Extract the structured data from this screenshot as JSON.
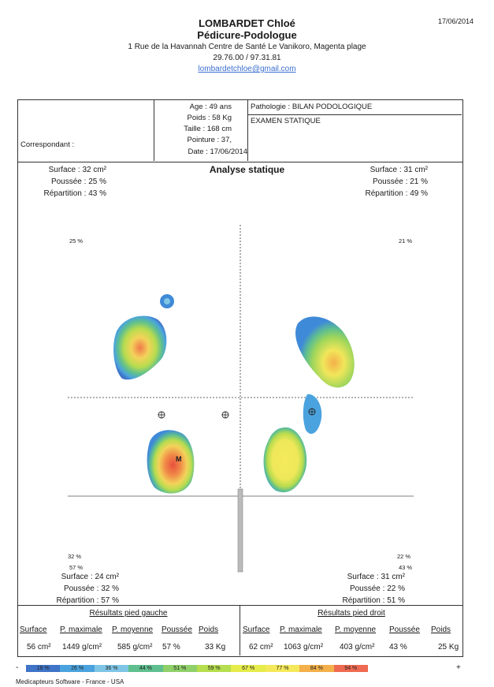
{
  "header": {
    "name": "LOMBARDET Chloé",
    "specialty": "Pédicure-Podologue",
    "address": "1 Rue de la Havannah Centre de Santé Le Vanikoro, Magenta plage",
    "phone": "29.76.00 / 97.31.81",
    "email": "lombardetchloe@gmail.com",
    "print_date": "17/06/2014"
  },
  "patient": {
    "correspondant_label": "Correspondant :",
    "age": "Age : 49 ans",
    "poids": "Poids : 58 Kg",
    "taille": "Taille : 168 cm",
    "pointure": "Pointure : 37,",
    "date": "Date : 17/06/2014",
    "pathologie": "Pathologie : BILAN PODOLOGIQUE",
    "examen": "EXAMEN STATIQUE"
  },
  "analysis": {
    "title": "Analyse statique",
    "left_top": {
      "surface": "Surface :   32 cm²",
      "poussee": "Poussée : 25 %",
      "repartition": "Répartition : 43 %"
    },
    "right_top": {
      "surface": "Surface :   31 cm²",
      "poussee": "Poussée : 21 %",
      "repartition": "Répartition : 49 %"
    },
    "left_bottom": {
      "surface": "Surface :   24 cm²",
      "poussee": "Poussée : 32 %",
      "repartition": "Répartition : 57 %"
    },
    "right_bottom": {
      "surface": "Surface :   31 cm²",
      "poussee": "Poussée : 22 %",
      "repartition": "Répartition : 51 %"
    },
    "quad_labels": {
      "tl": "25 %",
      "tr": "21 %",
      "bl_a": "32 %",
      "bl_b": "57 %",
      "br_a": "22 %",
      "br_b": "43 %"
    },
    "heel_marker": "M"
  },
  "results": {
    "left_title": "Résultats pied gauche",
    "right_title": "Résultats pied droit",
    "headers": [
      "Surface",
      "P. maximale",
      "P. moyenne",
      "Poussée",
      "Poids"
    ],
    "left_values": [
      "56 cm²",
      "1449 g/cm²",
      "585 g/cm²",
      "57 %",
      "33 Kg"
    ],
    "right_values": [
      "62 cm²",
      "1063 g/cm²",
      "403 g/cm²",
      "43 %",
      "25 Kg"
    ]
  },
  "scale": {
    "minus": "-",
    "plus": "+",
    "segments": [
      {
        "label": "18 %",
        "color": "#3f74c8"
      },
      {
        "label": "26 %",
        "color": "#4aa3de"
      },
      {
        "label": "36 %",
        "color": "#7fc6e6"
      },
      {
        "label": "44 %",
        "color": "#5fbf8f"
      },
      {
        "label": "51 %",
        "color": "#8fd06a"
      },
      {
        "label": "59 %",
        "color": "#b6de4e"
      },
      {
        "label": "67 %",
        "color": "#e6ec4a"
      },
      {
        "label": "77 %",
        "color": "#f5e85a"
      },
      {
        "label": "84 %",
        "color": "#f4b04a"
      },
      {
        "label": "94 %",
        "color": "#ef6a52"
      }
    ]
  },
  "footer": "Medicapteurs Software - France - USA"
}
